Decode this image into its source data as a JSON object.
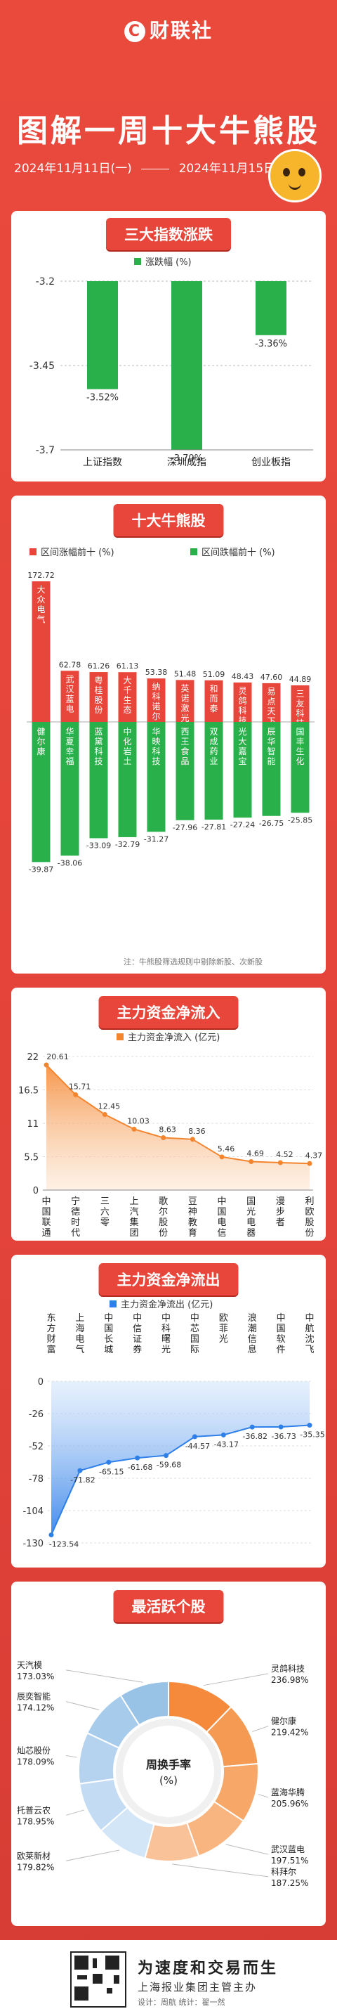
{
  "header": {
    "brand": "财联社",
    "title": "图解一周十大牛熊股",
    "date_start": "2024年11月11日(一)",
    "date_end": "2024年11月15日(五)"
  },
  "sections": {
    "index_title": "三大指数涨跌",
    "bullbear_title": "十大牛熊股",
    "inflow_title": "主力资金净流入",
    "outflow_title": "主力资金净流出",
    "active_title": "最活跃个股"
  },
  "note_bullbear": "注：牛熊股筛选规则中剔除新股、次新股",
  "colors": {
    "red": "#e8463a",
    "green": "#2ab04a",
    "orange": "#f4852f",
    "blue": "#2e7fe8"
  },
  "chart_data": [
    {
      "type": "bar",
      "legend": "涨跌幅 (%)",
      "categories": [
        "上证指数",
        "深圳成指",
        "创业板指"
      ],
      "values": [
        -3.52,
        -3.7,
        -3.36
      ],
      "value_labels": [
        "-3.52%",
        "-3.70%",
        "-3.36%"
      ],
      "yticks": [
        "-3.2",
        "-3.45",
        "-3.7"
      ],
      "ylim": [
        -3.7,
        -3.2
      ]
    },
    {
      "type": "bar",
      "legend_up": "区间涨幅前十 (%)",
      "legend_down": "区间跌幅前十 (%)",
      "gainers": [
        {
          "name": "大众电气",
          "value": 172.72
        },
        {
          "name": "武汉蓝电",
          "value": 62.78
        },
        {
          "name": "粤桂股份",
          "value": 61.26
        },
        {
          "name": "大千生态",
          "value": 61.13
        },
        {
          "name": "纳科诺尔",
          "value": 53.38
        },
        {
          "name": "英诺激光",
          "value": 51.48
        },
        {
          "name": "和而泰",
          "value": 51.09
        },
        {
          "name": "灵鸽科技",
          "value": 48.43
        },
        {
          "name": "易点天下",
          "value": 47.6
        },
        {
          "name": "三友科技",
          "value": 44.89
        }
      ],
      "losers": [
        {
          "name": "健尔康",
          "value": -39.87
        },
        {
          "name": "华夏幸福",
          "value": -38.06
        },
        {
          "name": "蓝黛科技",
          "value": -33.09
        },
        {
          "name": "中化岩土",
          "value": -32.79
        },
        {
          "name": "华映科技",
          "value": -31.27
        },
        {
          "name": "西王食品",
          "value": -27.96
        },
        {
          "name": "双成药业",
          "value": -27.81
        },
        {
          "name": "光大嘉宝",
          "value": -27.24
        },
        {
          "name": "辰华智能",
          "value": -26.75
        },
        {
          "name": "国丰生化",
          "value": -25.85
        }
      ]
    },
    {
      "type": "area",
      "legend": "主力资金净流入 (亿元)",
      "categories": [
        "中国联通",
        "宁德时代",
        "三六零",
        "上汽集团",
        "歌尔股份",
        "豆神教育",
        "中国电信",
        "国光电器",
        "漫步者",
        "利欧股份"
      ],
      "values": [
        20.61,
        15.71,
        12.45,
        10.03,
        8.63,
        8.36,
        5.46,
        4.69,
        4.52,
        4.37
      ],
      "yticks": [
        "22",
        "16.5",
        "11",
        "5.5",
        "0"
      ],
      "ylim": [
        0,
        22
      ]
    },
    {
      "type": "area",
      "legend": "主力资金净流出 (亿元)",
      "categories": [
        "东方财富",
        "上海电气",
        "中国长城",
        "中信证券",
        "中科曙光",
        "中芯国际",
        "欧菲光",
        "浪潮信息",
        "中国软件",
        "中航沈飞"
      ],
      "values": [
        -123.54,
        -71.82,
        -65.15,
        -61.68,
        -59.68,
        -44.57,
        -43.17,
        -36.82,
        -36.73,
        -35.35
      ],
      "yticks": [
        "0",
        "-26",
        "-52",
        "-78",
        "-104",
        "-130"
      ],
      "ylim": [
        -130,
        0
      ]
    },
    {
      "type": "pie",
      "center_label": "周换手率\n(%)",
      "slices": [
        {
          "name": "灵鸽科技",
          "value": 236.98
        },
        {
          "name": "健尔康",
          "value": 219.42
        },
        {
          "name": "蓝海华腾",
          "value": 205.96
        },
        {
          "name": "武汉蓝电",
          "value": 197.51
        },
        {
          "name": "科拜尔",
          "value": 187.25
        },
        {
          "name": "欧莱新材",
          "value": 179.82
        },
        {
          "name": "托普云农",
          "value": 178.95
        },
        {
          "name": "灿芯股份",
          "value": 178.09
        },
        {
          "name": "辰奕智能",
          "value": 174.12
        },
        {
          "name": "天汽模",
          "value": 173.03
        }
      ],
      "slice_labels": [
        "236.98%",
        "219.42%",
        "205.96%",
        "197.51%",
        "187.25%",
        "179.82%",
        "178.95%",
        "178.09%",
        "174.12%",
        "173.03%"
      ]
    }
  ],
  "footer": {
    "slogan": "为速度和交易而生",
    "sub": "上海报业集团主管主办",
    "credit": "设计：周航   统计：翟一然"
  }
}
